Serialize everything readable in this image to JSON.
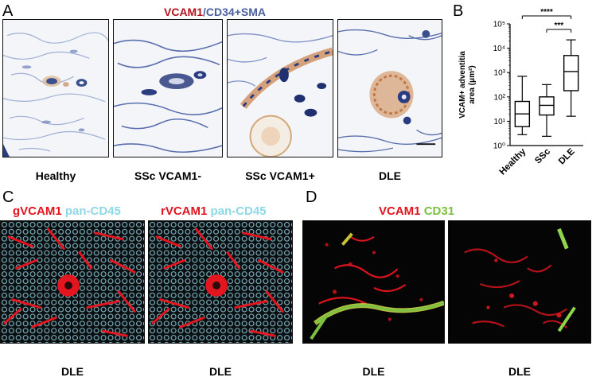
{
  "panels": {
    "a": {
      "letter": "A",
      "title_part1": "VCAM1",
      "title_separator": "/",
      "title_part2": "CD34+SMA",
      "title_colors": {
        "part1": "#b5121b",
        "part2": "#4a5f9e"
      },
      "captions": [
        "Healthy",
        "SSc VCAM1-",
        "SSc VCAM1+",
        "DLE"
      ]
    },
    "b": {
      "letter": "B"
    },
    "c": {
      "letter": "C",
      "left_stain": "gVCAM1",
      "right_stain": "rVCAM1",
      "counterstain": "pan-CD45",
      "stain_colors": {
        "vcam": "#e0141e",
        "cd45": "#8fd8e8"
      },
      "captions": [
        "DLE",
        "DLE"
      ]
    },
    "d": {
      "letter": "D",
      "stain1": "VCAM1",
      "stain2": "CD31",
      "stain_colors": {
        "vcam": "#e0141e",
        "cd31": "#7bc142"
      },
      "captions": [
        "DLE",
        "DLE"
      ]
    }
  },
  "chart_data": {
    "type": "box",
    "ylabel_line1": "VCAM+ adventitia",
    "ylabel_line2": "area (μm²)",
    "yscale": "log",
    "ylim": [
      1,
      100000
    ],
    "ytick_labels": [
      "10⁰",
      "10¹",
      "10²",
      "10³",
      "10⁴",
      "10⁵"
    ],
    "categories": [
      "Healthy",
      "SSc",
      "DLE"
    ],
    "boxes": [
      {
        "name": "Healthy",
        "min": 2.8,
        "q1": 6,
        "median": 20,
        "q3": 65,
        "max": 700
      },
      {
        "name": "SSc",
        "min": 2.4,
        "q1": 18,
        "median": 45,
        "q3": 100,
        "max": 320
      },
      {
        "name": "DLE",
        "min": 16,
        "q1": 180,
        "median": 1100,
        "q3": 5000,
        "max": 22000
      }
    ],
    "significance": [
      {
        "from": "Healthy",
        "to": "DLE",
        "label": "****"
      },
      {
        "from": "SSc",
        "to": "DLE",
        "label": "***"
      }
    ]
  }
}
